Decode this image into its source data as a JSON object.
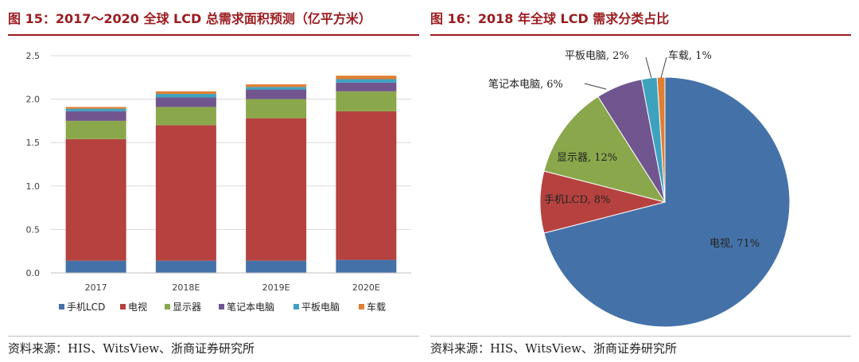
{
  "left": {
    "title": "图 15：2017～2020 全球 LCD 总需求面积预测（亿平方米）",
    "source": "资料来源：HIS、WitsView、浙商证券研究所"
  },
  "right": {
    "title": "图 16：2018 年全球 LCD 需求分类占比",
    "source": "资料来源：HIS、WitsView、浙商证券研究所"
  },
  "colors": {
    "title": "#9b1c20",
    "series": [
      "#4472a8",
      "#b5423f",
      "#8aa84b",
      "#71558f",
      "#3ea2bf",
      "#e07f32"
    ]
  },
  "chart_data": [
    {
      "type": "bar",
      "stacked": true,
      "title": "2017～2020 全球 LCD 总需求面积预测（亿平方米）",
      "categories": [
        "2017",
        "2018E",
        "2019E",
        "2020E"
      ],
      "ylim": [
        0,
        2.5
      ],
      "yticks": [
        "0.0",
        "0.5",
        "1.0",
        "1.5",
        "2.0",
        "2.5"
      ],
      "ytick_values": [
        0,
        0.5,
        1.0,
        1.5,
        2.0,
        2.5
      ],
      "grid": true,
      "legend": "bottom",
      "series": [
        {
          "name": "手机LCD",
          "values": [
            0.14,
            0.14,
            0.14,
            0.15
          ]
        },
        {
          "name": "电视",
          "values": [
            1.4,
            1.56,
            1.64,
            1.71
          ]
        },
        {
          "name": "显示器",
          "values": [
            0.21,
            0.21,
            0.22,
            0.23
          ]
        },
        {
          "name": "笔记本电脑",
          "values": [
            0.11,
            0.11,
            0.11,
            0.1
          ]
        },
        {
          "name": "平板电脑",
          "values": [
            0.03,
            0.04,
            0.03,
            0.04
          ]
        },
        {
          "name": "车载",
          "values": [
            0.02,
            0.03,
            0.03,
            0.04
          ]
        }
      ]
    },
    {
      "type": "pie",
      "title": "2018 年全球 LCD 需求分类占比",
      "slices": [
        {
          "name": "电视",
          "value": 71,
          "label": "电视, 71%"
        },
        {
          "name": "手机LCD",
          "value": 8,
          "label": "手机LCD, 8%"
        },
        {
          "name": "显示器",
          "value": 12,
          "label": "显示器, 12%"
        },
        {
          "name": "笔记本电脑",
          "value": 6,
          "label": "笔记本电脑, 6%"
        },
        {
          "name": "平板电脑",
          "value": 2,
          "label": "平板电脑, 2%"
        },
        {
          "name": "车载",
          "value": 1,
          "label": "车载, 1%"
        }
      ]
    }
  ]
}
